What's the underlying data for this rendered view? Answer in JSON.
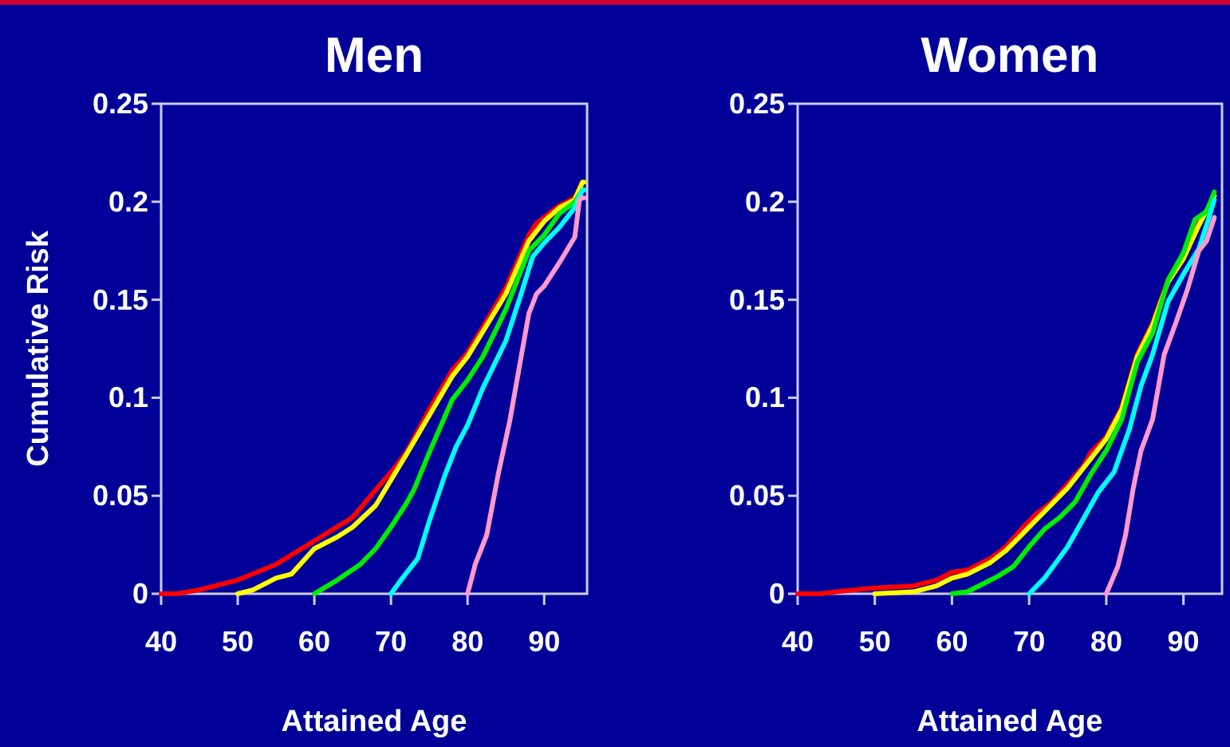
{
  "chart_data": [
    {
      "type": "line",
      "title": "Men",
      "xlabel": "Attained Age",
      "ylabel": "Cumulative Risk",
      "xlim": [
        40,
        95.6
      ],
      "ylim": [
        0,
        0.25
      ],
      "xticks": [
        40,
        50,
        60,
        70,
        80,
        90
      ],
      "yticks": [
        0,
        0.05,
        0.1,
        0.15,
        0.2,
        0.25
      ],
      "grid": false,
      "marker": "none",
      "line_style": "solid",
      "series": [
        {
          "color": "#ff0000",
          "x": [
            40,
            42,
            45,
            50,
            55,
            60,
            65,
            68,
            70,
            72,
            75,
            78,
            80,
            82,
            85,
            88,
            89,
            90,
            92,
            94,
            95,
            95.2
          ],
          "values": [
            0,
            0,
            0.002,
            0.007,
            0.015,
            0.027,
            0.039,
            0.053,
            0.062,
            0.072,
            0.094,
            0.114,
            0.123,
            0.136,
            0.156,
            0.183,
            0.189,
            0.192,
            0.198,
            0.202,
            0.21,
            0.21
          ]
        },
        {
          "color": "#ffff00",
          "x": [
            50,
            52,
            55,
            57,
            60,
            63,
            65,
            68,
            70,
            72,
            75,
            78,
            80,
            85,
            88,
            90,
            92,
            94,
            95,
            95.2
          ],
          "values": [
            0,
            0.002,
            0.008,
            0.01,
            0.023,
            0.029,
            0.034,
            0.045,
            0.058,
            0.071,
            0.091,
            0.111,
            0.121,
            0.153,
            0.18,
            0.19,
            0.197,
            0.201,
            0.21,
            0.21
          ]
        },
        {
          "color": "#00ee00",
          "x": [
            60,
            63,
            66,
            68,
            70,
            72,
            73,
            75,
            78,
            80,
            82,
            85,
            88,
            90,
            92,
            94,
            95,
            95.2
          ],
          "values": [
            0,
            0.007,
            0.015,
            0.023,
            0.034,
            0.046,
            0.053,
            0.072,
            0.099,
            0.109,
            0.121,
            0.145,
            0.175,
            0.183,
            0.194,
            0.2,
            0.206,
            0.206
          ]
        },
        {
          "color": "#00ffff",
          "x": [
            70,
            71.5,
            73.5,
            75,
            77,
            78.5,
            80,
            82,
            85,
            87,
            88.5,
            90,
            92,
            94,
            95,
            95.2
          ],
          "values": [
            0,
            0.008,
            0.018,
            0.037,
            0.06,
            0.075,
            0.086,
            0.105,
            0.129,
            0.153,
            0.172,
            0.179,
            0.187,
            0.197,
            0.206,
            0.206
          ]
        },
        {
          "color": "#ff99cc",
          "x": [
            80,
            81,
            82.5,
            84,
            85.5,
            87,
            88,
            89,
            90,
            92,
            94,
            94.6,
            95,
            95.2
          ],
          "values": [
            0,
            0.015,
            0.03,
            0.061,
            0.088,
            0.121,
            0.143,
            0.153,
            0.157,
            0.169,
            0.182,
            0.201,
            0.202,
            0.202
          ]
        }
      ]
    },
    {
      "type": "line",
      "title": "Women",
      "xlabel": "Attained Age",
      "xlim": [
        40,
        95
      ],
      "ylim": [
        0,
        0.25
      ],
      "xticks": [
        40,
        50,
        60,
        70,
        80,
        90
      ],
      "yticks": [
        0,
        0.05,
        0.1,
        0.15,
        0.2,
        0.25
      ],
      "grid": false,
      "marker": "none",
      "line_style": "solid",
      "series": [
        {
          "color": "#ff0000",
          "x": [
            40,
            43,
            45,
            50,
            55,
            58,
            60,
            62,
            65,
            67,
            69,
            71,
            73,
            75,
            77,
            78,
            80,
            82,
            84,
            86,
            88,
            90,
            92,
            93,
            94
          ],
          "values": [
            0,
            0,
            0.001,
            0.003,
            0.004,
            0.007,
            0.011,
            0.012,
            0.018,
            0.024,
            0.033,
            0.041,
            0.047,
            0.056,
            0.065,
            0.072,
            0.08,
            0.095,
            0.122,
            0.138,
            0.16,
            0.172,
            0.19,
            0.195,
            0.203
          ]
        },
        {
          "color": "#ffff00",
          "x": [
            50,
            55,
            58,
            60,
            62,
            65,
            67,
            69,
            71,
            73,
            75,
            77,
            80,
            82,
            84,
            86,
            88,
            90,
            92,
            94
          ],
          "values": [
            0,
            0.001,
            0.004,
            0.008,
            0.01,
            0.016,
            0.022,
            0.03,
            0.038,
            0.046,
            0.054,
            0.064,
            0.079,
            0.094,
            0.121,
            0.137,
            0.159,
            0.171,
            0.188,
            0.203
          ]
        },
        {
          "color": "#00ee00",
          "x": [
            60,
            62,
            64,
            66,
            68,
            70,
            72,
            74,
            76,
            78,
            80,
            82,
            84,
            86,
            88,
            90,
            91.5,
            93,
            94
          ],
          "values": [
            0,
            0.001,
            0.005,
            0.009,
            0.014,
            0.024,
            0.033,
            0.039,
            0.047,
            0.061,
            0.073,
            0.089,
            0.118,
            0.133,
            0.16,
            0.174,
            0.191,
            0.195,
            0.205
          ]
        },
        {
          "color": "#00ffff",
          "x": [
            70,
            72,
            73.5,
            75,
            77,
            79,
            81,
            83,
            84.5,
            86,
            88,
            90,
            92,
            93,
            94
          ],
          "values": [
            0,
            0.008,
            0.016,
            0.024,
            0.038,
            0.052,
            0.062,
            0.084,
            0.106,
            0.122,
            0.149,
            0.163,
            0.176,
            0.188,
            0.201
          ]
        },
        {
          "color": "#ff99cc",
          "x": [
            80,
            81.5,
            82.5,
            83.5,
            84.5,
            86,
            87.5,
            89,
            90.5,
            92,
            93,
            94
          ],
          "values": [
            0,
            0.014,
            0.03,
            0.054,
            0.073,
            0.089,
            0.122,
            0.138,
            0.155,
            0.175,
            0.18,
            0.192
          ]
        }
      ]
    }
  ]
}
